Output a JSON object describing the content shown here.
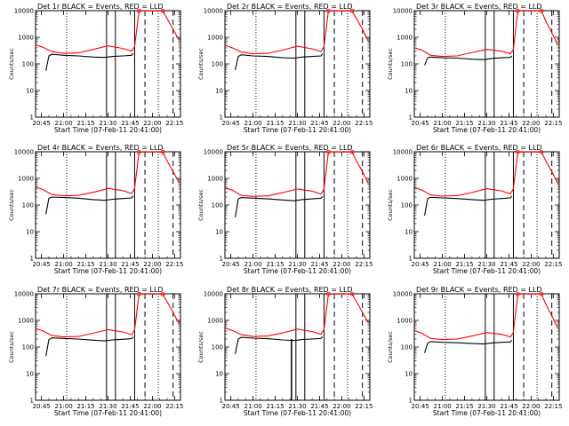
{
  "chart_data": [
    {
      "type": "line",
      "title": "Det 1r BLACK = Events, RED = LLD",
      "xlabel": "Start Time (07-Feb-11 20:41:00)",
      "ylabel": "Counts/sec",
      "y_scale": "log",
      "ylim": [
        1,
        10000
      ],
      "xlim": [
        "20:41",
        "22:19"
      ],
      "x_ticks": [
        "20:45",
        "21:00",
        "21:15",
        "21:30",
        "21:45",
        "22:00",
        "22:15"
      ],
      "y_ticks": [
        "1",
        "10",
        "100",
        "1000",
        "10000"
      ],
      "vertical_lines": {
        "solid": [
          "21:29",
          "21:35",
          "21:48"
        ],
        "dashed": [
          "21:55",
          "22:14"
        ],
        "dotted": [
          "21:02",
          "22:04"
        ]
      },
      "events_color": "#000000",
      "lld_color": "#ff0000",
      "spike": false,
      "series": [
        {
          "name": "Events",
          "x": [
            "20:48",
            "20:50",
            "20:52",
            "21:00",
            "21:10",
            "21:20",
            "21:28",
            "21:33",
            "21:40",
            "21:46",
            "21:47"
          ],
          "values": [
            55,
            200,
            230,
            210,
            200,
            180,
            175,
            190,
            200,
            210,
            250
          ]
        },
        {
          "name": "LLD",
          "x": [
            "20:41",
            "20:46",
            "20:52",
            "21:00",
            "21:10",
            "21:20",
            "21:30",
            "21:40",
            "21:46",
            "21:48",
            "21:51",
            "21:52",
            "22:07",
            "22:10",
            "22:14",
            "22:18"
          ],
          "values": [
            520,
            420,
            290,
            250,
            260,
            350,
            480,
            380,
            300,
            450,
            9800,
            9800,
            9800,
            5000,
            2000,
            800
          ]
        }
      ]
    },
    {
      "type": "line",
      "title": "Det 2r BLACK = Events, RED = LLD",
      "xlabel": "Start Time (07-Feb-11 20:41:00)",
      "ylabel": "Counts/sec",
      "y_scale": "log",
      "ylim": [
        1,
        10000
      ],
      "xlim": [
        "20:41",
        "22:19"
      ],
      "x_ticks": [
        "20:45",
        "21:00",
        "21:15",
        "21:30",
        "21:45",
        "22:00",
        "22:15"
      ],
      "y_ticks": [
        "1",
        "10",
        "100",
        "1000",
        "10000"
      ],
      "vertical_lines": {
        "solid": [
          "21:29",
          "21:35",
          "21:48"
        ],
        "dashed": [
          "21:55",
          "22:14"
        ],
        "dotted": [
          "21:02",
          "22:04"
        ]
      },
      "events_color": "#000000",
      "lld_color": "#ff0000",
      "spike": false,
      "series": [
        {
          "name": "Events",
          "x": [
            "20:48",
            "20:50",
            "20:52",
            "21:00",
            "21:10",
            "21:20",
            "21:28",
            "21:33",
            "21:40",
            "21:46",
            "21:47"
          ],
          "values": [
            60,
            190,
            220,
            200,
            190,
            170,
            165,
            180,
            190,
            200,
            240
          ]
        },
        {
          "name": "LLD",
          "x": [
            "20:41",
            "20:46",
            "20:52",
            "21:00",
            "21:10",
            "21:20",
            "21:30",
            "21:40",
            "21:46",
            "21:48",
            "21:51",
            "21:52",
            "22:07",
            "22:10",
            "22:14",
            "22:18"
          ],
          "values": [
            500,
            400,
            280,
            240,
            250,
            330,
            460,
            370,
            290,
            440,
            9800,
            9800,
            9800,
            5000,
            2000,
            700
          ]
        }
      ]
    },
    {
      "type": "line",
      "title": "Det 3r BLACK = Events, RED = LLD",
      "xlabel": "Start Time (07-Feb-11 20:41:00)",
      "ylabel": "Counts/sec",
      "y_scale": "log",
      "ylim": [
        1,
        10000
      ],
      "xlim": [
        "20:41",
        "22:19"
      ],
      "x_ticks": [
        "20:45",
        "21:00",
        "21:15",
        "21:30",
        "21:45",
        "22:00",
        "22:15"
      ],
      "y_ticks": [
        "1",
        "10",
        "100",
        "1000",
        "10000"
      ],
      "vertical_lines": {
        "solid": [
          "21:29",
          "21:35",
          "21:48"
        ],
        "dashed": [
          "21:55",
          "22:14"
        ],
        "dotted": [
          "21:02",
          "22:04"
        ]
      },
      "events_color": "#000000",
      "lld_color": "#ff0000",
      "spike": false,
      "series": [
        {
          "name": "Events",
          "x": [
            "20:48",
            "20:50",
            "20:52",
            "21:00",
            "21:10",
            "21:20",
            "21:28",
            "21:33",
            "21:40",
            "21:46",
            "21:47"
          ],
          "values": [
            90,
            170,
            180,
            170,
            165,
            150,
            145,
            160,
            170,
            175,
            200
          ]
        },
        {
          "name": "LLD",
          "x": [
            "20:41",
            "20:46",
            "20:52",
            "21:00",
            "21:10",
            "21:20",
            "21:30",
            "21:40",
            "21:46",
            "21:48",
            "21:51",
            "21:52",
            "22:07",
            "22:10",
            "22:14",
            "22:18"
          ],
          "values": [
            400,
            330,
            210,
            190,
            200,
            270,
            350,
            300,
            240,
            350,
            9800,
            9800,
            9800,
            4000,
            1500,
            500
          ]
        }
      ]
    },
    {
      "type": "line",
      "title": "Det 4r BLACK = Events, RED = LLD",
      "xlabel": "Start Time (07-Feb-11 20:41:00)",
      "ylabel": "Counts/sec",
      "y_scale": "log",
      "ylim": [
        1,
        10000
      ],
      "xlim": [
        "20:41",
        "22:19"
      ],
      "x_ticks": [
        "20:45",
        "21:00",
        "21:15",
        "21:30",
        "21:45",
        "22:00",
        "22:15"
      ],
      "y_ticks": [
        "1",
        "10",
        "100",
        "1000",
        "10000"
      ],
      "vertical_lines": {
        "solid": [
          "21:29",
          "21:35",
          "21:48"
        ],
        "dashed": [
          "21:55",
          "22:14"
        ],
        "dotted": [
          "21:02",
          "22:04"
        ]
      },
      "events_color": "#000000",
      "lld_color": "#ff0000",
      "spike": false,
      "series": [
        {
          "name": "Events",
          "x": [
            "20:48",
            "20:50",
            "20:52",
            "21:00",
            "21:10",
            "21:20",
            "21:28",
            "21:33",
            "21:40",
            "21:46",
            "21:47"
          ],
          "values": [
            45,
            180,
            200,
            190,
            180,
            160,
            150,
            165,
            175,
            185,
            220
          ]
        },
        {
          "name": "LLD",
          "x": [
            "20:41",
            "20:46",
            "20:52",
            "21:00",
            "21:10",
            "21:20",
            "21:30",
            "21:40",
            "21:46",
            "21:48",
            "21:51",
            "21:52",
            "22:07",
            "22:10",
            "22:14",
            "22:18"
          ],
          "values": [
            480,
            380,
            250,
            220,
            230,
            300,
            420,
            350,
            270,
            420,
            9800,
            9800,
            9800,
            4500,
            1800,
            700
          ]
        }
      ]
    },
    {
      "type": "line",
      "title": "Det 5r BLACK = Events, RED = LLD",
      "xlabel": "Start Time (07-Feb-11 20:41:00)",
      "ylabel": "Counts/sec",
      "y_scale": "log",
      "ylim": [
        1,
        10000
      ],
      "xlim": [
        "20:41",
        "22:19"
      ],
      "x_ticks": [
        "20:45",
        "21:00",
        "21:15",
        "21:30",
        "21:45",
        "22:00",
        "22:15"
      ],
      "y_ticks": [
        "1",
        "10",
        "100",
        "1000",
        "10000"
      ],
      "vertical_lines": {
        "solid": [
          "21:29",
          "21:35",
          "21:48"
        ],
        "dashed": [
          "21:55",
          "22:14"
        ],
        "dotted": [
          "21:02",
          "22:04"
        ]
      },
      "events_color": "#000000",
      "lld_color": "#ff0000",
      "spike": false,
      "series": [
        {
          "name": "Events",
          "x": [
            "20:48",
            "20:50",
            "20:52",
            "21:00",
            "21:10",
            "21:20",
            "21:28",
            "21:33",
            "21:40",
            "21:46",
            "21:47"
          ],
          "values": [
            35,
            170,
            190,
            180,
            170,
            155,
            145,
            160,
            170,
            180,
            210
          ]
        },
        {
          "name": "LLD",
          "x": [
            "20:41",
            "20:46",
            "20:52",
            "21:00",
            "21:10",
            "21:20",
            "21:30",
            "21:40",
            "21:46",
            "21:48",
            "21:51",
            "21:52",
            "22:07",
            "22:10",
            "22:14",
            "22:18"
          ],
          "values": [
            450,
            360,
            230,
            210,
            220,
            290,
            400,
            330,
            260,
            400,
            9800,
            9800,
            9800,
            4500,
            1800,
            650
          ]
        }
      ]
    },
    {
      "type": "line",
      "title": "Det 6r BLACK = Events, RED = LLD",
      "xlabel": "Start Time (07-Feb-11 20:41:00)",
      "ylabel": "Counts/sec",
      "y_scale": "log",
      "ylim": [
        1,
        10000
      ],
      "xlim": [
        "20:41",
        "22:19"
      ],
      "x_ticks": [
        "20:45",
        "21:00",
        "21:15",
        "21:30",
        "21:45",
        "22:00",
        "22:15"
      ],
      "y_ticks": [
        "1",
        "10",
        "100",
        "1000",
        "10000"
      ],
      "vertical_lines": {
        "solid": [
          "21:29",
          "21:35",
          "21:48"
        ],
        "dashed": [
          "21:55",
          "22:14"
        ],
        "dotted": [
          "21:02",
          "22:04"
        ]
      },
      "events_color": "#000000",
      "lld_color": "#ff0000",
      "spike": false,
      "series": [
        {
          "name": "Events",
          "x": [
            "20:48",
            "20:50",
            "20:52",
            "21:00",
            "21:10",
            "21:20",
            "21:28",
            "21:33",
            "21:40",
            "21:46",
            "21:47"
          ],
          "values": [
            40,
            175,
            195,
            185,
            175,
            160,
            150,
            165,
            175,
            185,
            215
          ]
        },
        {
          "name": "LLD",
          "x": [
            "20:41",
            "20:46",
            "20:52",
            "21:00",
            "21:10",
            "21:20",
            "21:30",
            "21:40",
            "21:46",
            "21:48",
            "21:51",
            "21:52",
            "22:07",
            "22:10",
            "22:14",
            "22:18"
          ],
          "values": [
            460,
            370,
            240,
            215,
            225,
            295,
            410,
            340,
            265,
            410,
            9800,
            9800,
            9800,
            4500,
            1800,
            650
          ]
        }
      ]
    },
    {
      "type": "line",
      "title": "Det 7r BLACK = Events, RED = LLD",
      "xlabel": "Start Time (07-Feb-11 20:41:00)",
      "ylabel": "Counts/sec",
      "y_scale": "log",
      "ylim": [
        1,
        10000
      ],
      "xlim": [
        "20:41",
        "22:19"
      ],
      "x_ticks": [
        "20:45",
        "21:00",
        "21:15",
        "21:30",
        "21:45",
        "22:00",
        "22:15"
      ],
      "y_ticks": [
        "1",
        "10",
        "100",
        "1000",
        "10000"
      ],
      "vertical_lines": {
        "solid": [
          "21:29",
          "21:35",
          "21:48"
        ],
        "dashed": [
          "21:55",
          "22:14"
        ],
        "dotted": [
          "21:02",
          "22:04"
        ]
      },
      "events_color": "#000000",
      "lld_color": "#ff0000",
      "spike": false,
      "series": [
        {
          "name": "Events",
          "x": [
            "20:48",
            "20:50",
            "20:52",
            "21:00",
            "21:10",
            "21:20",
            "21:28",
            "21:33",
            "21:40",
            "21:46",
            "21:47"
          ],
          "values": [
            45,
            190,
            220,
            210,
            200,
            180,
            170,
            185,
            195,
            205,
            240
          ]
        },
        {
          "name": "LLD",
          "x": [
            "20:41",
            "20:46",
            "20:52",
            "21:00",
            "21:10",
            "21:20",
            "21:30",
            "21:40",
            "21:46",
            "21:48",
            "21:51",
            "21:52",
            "22:07",
            "22:10",
            "22:14",
            "22:18"
          ],
          "values": [
            500,
            400,
            270,
            240,
            250,
            330,
            450,
            370,
            290,
            440,
            9800,
            9800,
            9800,
            5000,
            2000,
            750
          ]
        }
      ]
    },
    {
      "type": "line",
      "title": "Det 8r BLACK = Events, RED = LLD",
      "xlabel": "Start Time (07-Feb-11 20:41:00)",
      "ylabel": "Counts/sec",
      "y_scale": "log",
      "ylim": [
        1,
        10000
      ],
      "xlim": [
        "20:41",
        "22:19"
      ],
      "x_ticks": [
        "20:45",
        "21:00",
        "21:15",
        "21:30",
        "21:45",
        "22:00",
        "22:15"
      ],
      "y_ticks": [
        "1",
        "10",
        "100",
        "1000",
        "10000"
      ],
      "vertical_lines": {
        "solid": [
          "21:29",
          "21:35",
          "21:48"
        ],
        "dashed": [
          "21:55",
          "22:14"
        ],
        "dotted": [
          "21:02",
          "22:04"
        ]
      },
      "events_color": "#000000",
      "lld_color": "#ff0000",
      "spike": true,
      "series": [
        {
          "name": "Events",
          "x": [
            "20:48",
            "20:50",
            "20:52",
            "21:00",
            "21:10",
            "21:20",
            "21:28",
            "21:33",
            "21:40",
            "21:46",
            "21:47"
          ],
          "values": [
            55,
            200,
            230,
            215,
            205,
            185,
            175,
            190,
            200,
            210,
            245
          ]
        },
        {
          "name": "LLD",
          "x": [
            "20:41",
            "20:46",
            "20:52",
            "21:00",
            "21:10",
            "21:20",
            "21:30",
            "21:40",
            "21:46",
            "21:48",
            "21:51",
            "21:52",
            "22:07",
            "22:10",
            "22:14",
            "22:18"
          ],
          "values": [
            520,
            420,
            290,
            250,
            260,
            340,
            470,
            380,
            300,
            450,
            9800,
            9800,
            9800,
            5000,
            2000,
            800
          ]
        }
      ]
    },
    {
      "type": "line",
      "title": "Det 9r BLACK = Events, RED = LLD",
      "xlabel": "Start Time (07-Feb-11 20:41:00)",
      "ylabel": "Counts/sec",
      "y_scale": "log",
      "ylim": [
        1,
        10000
      ],
      "xlim": [
        "20:41",
        "22:19"
      ],
      "x_ticks": [
        "20:45",
        "21:00",
        "21:15",
        "21:30",
        "21:45",
        "22:00",
        "22:15"
      ],
      "y_ticks": [
        "1",
        "10",
        "100",
        "1000",
        "10000"
      ],
      "vertical_lines": {
        "solid": [
          "21:29",
          "21:35",
          "21:48"
        ],
        "dashed": [
          "21:55",
          "22:14"
        ],
        "dotted": [
          "21:02",
          "22:04"
        ]
      },
      "events_color": "#000000",
      "lld_color": "#ff0000",
      "spike": false,
      "series": [
        {
          "name": "Events",
          "x": [
            "20:48",
            "20:50",
            "20:52",
            "21:00",
            "21:10",
            "21:20",
            "21:28",
            "21:33",
            "21:40",
            "21:46",
            "21:47"
          ],
          "values": [
            60,
            140,
            160,
            150,
            145,
            135,
            130,
            140,
            150,
            155,
            180
          ]
        },
        {
          "name": "LLD",
          "x": [
            "20:41",
            "20:46",
            "20:52",
            "21:00",
            "21:10",
            "21:20",
            "21:30",
            "21:40",
            "21:46",
            "21:48",
            "21:51",
            "21:52",
            "22:07",
            "22:10",
            "22:14",
            "22:18"
          ],
          "values": [
            420,
            330,
            210,
            190,
            200,
            260,
            350,
            300,
            240,
            350,
            9800,
            9800,
            9800,
            4000,
            1500,
            500
          ]
        }
      ]
    }
  ]
}
